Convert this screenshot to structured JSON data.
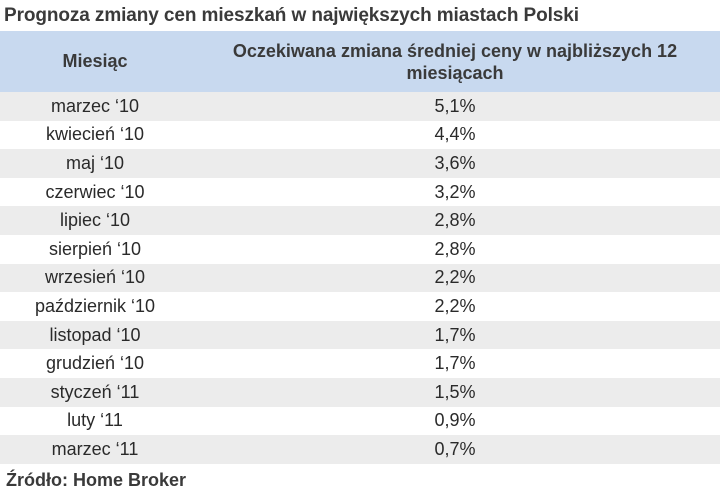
{
  "title": "Prognoza zmiany cen mieszkań w największych miastach Polski",
  "source": "Źródło: Home Broker",
  "chart_data": {
    "type": "table",
    "columns": [
      "Miesiąc",
      "Oczekiwana zmiana średniej ceny w najbliższych 12 miesiącach"
    ],
    "rows": [
      {
        "month": "marzec ‘10",
        "value": "5,1%"
      },
      {
        "month": "kwiecień ‘10",
        "value": "4,4%"
      },
      {
        "month": "maj ‘10",
        "value": "3,6%"
      },
      {
        "month": "czerwiec ‘10",
        "value": "3,2%"
      },
      {
        "month": "lipiec ‘10",
        "value": "2,8%"
      },
      {
        "month": "sierpień ‘10",
        "value": "2,8%"
      },
      {
        "month": "wrzesień ‘10",
        "value": "2,2%"
      },
      {
        "month": "październik ‘10",
        "value": "2,2%"
      },
      {
        "month": "listopad ‘10",
        "value": "1,7%"
      },
      {
        "month": "grudzień ‘10",
        "value": "1,7%"
      },
      {
        "month": "styczeń ‘11",
        "value": "1,5%"
      },
      {
        "month": "luty ‘11",
        "value": "0,9%"
      },
      {
        "month": "marzec ‘11",
        "value": "0,7%"
      }
    ],
    "colors": {
      "header_background": "#c8d9ef",
      "shaded_row": "#ececec"
    }
  }
}
